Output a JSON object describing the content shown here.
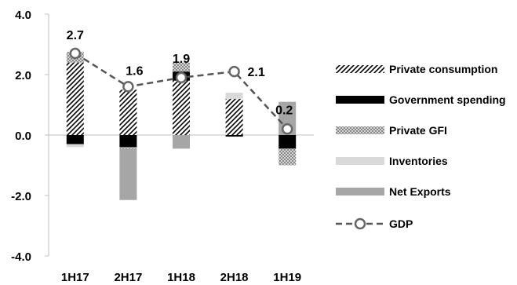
{
  "chart_data": {
    "type": "bar",
    "stacked": true,
    "categories": [
      "1H17",
      "2H17",
      "1H18",
      "2H18",
      "1H19"
    ],
    "ylim": [
      -4.0,
      4.0
    ],
    "yticks": [
      "4.0",
      "2.0",
      "0.0",
      "-2.0",
      "-4.0"
    ],
    "ytick_values": [
      4.0,
      2.0,
      0.0,
      -2.0,
      -4.0
    ],
    "legend_position": "right",
    "series": [
      {
        "name": "Private consumption",
        "pattern": "diagonal-stripes",
        "color": "#000000",
        "values": [
          2.4,
          1.5,
          1.8,
          1.2,
          0.0
        ]
      },
      {
        "name": "Government spending",
        "pattern": "solid",
        "color": "#000000",
        "values": [
          -0.3,
          -0.4,
          0.3,
          -0.05,
          -0.45
        ]
      },
      {
        "name": "Private GFI",
        "pattern": "checker",
        "color": "#9a9a9a",
        "values": [
          0.35,
          -0.05,
          0.3,
          0.0,
          -0.55
        ]
      },
      {
        "name": "Inventories",
        "pattern": "solid",
        "color": "#d9d9d9",
        "values": [
          -0.1,
          0.0,
          0.0,
          0.2,
          0.0
        ]
      },
      {
        "name": "Net Exports",
        "pattern": "solid",
        "color": "#a6a6a6",
        "values": [
          0.0,
          -1.7,
          -0.45,
          0.0,
          1.1
        ]
      }
    ],
    "line": {
      "name": "GDP",
      "color": "#555555",
      "values": [
        2.7,
        1.6,
        1.9,
        2.1,
        0.2
      ],
      "labels": [
        "2.7",
        "1.6",
        "1.9",
        "2.1",
        "0.2"
      ]
    }
  }
}
